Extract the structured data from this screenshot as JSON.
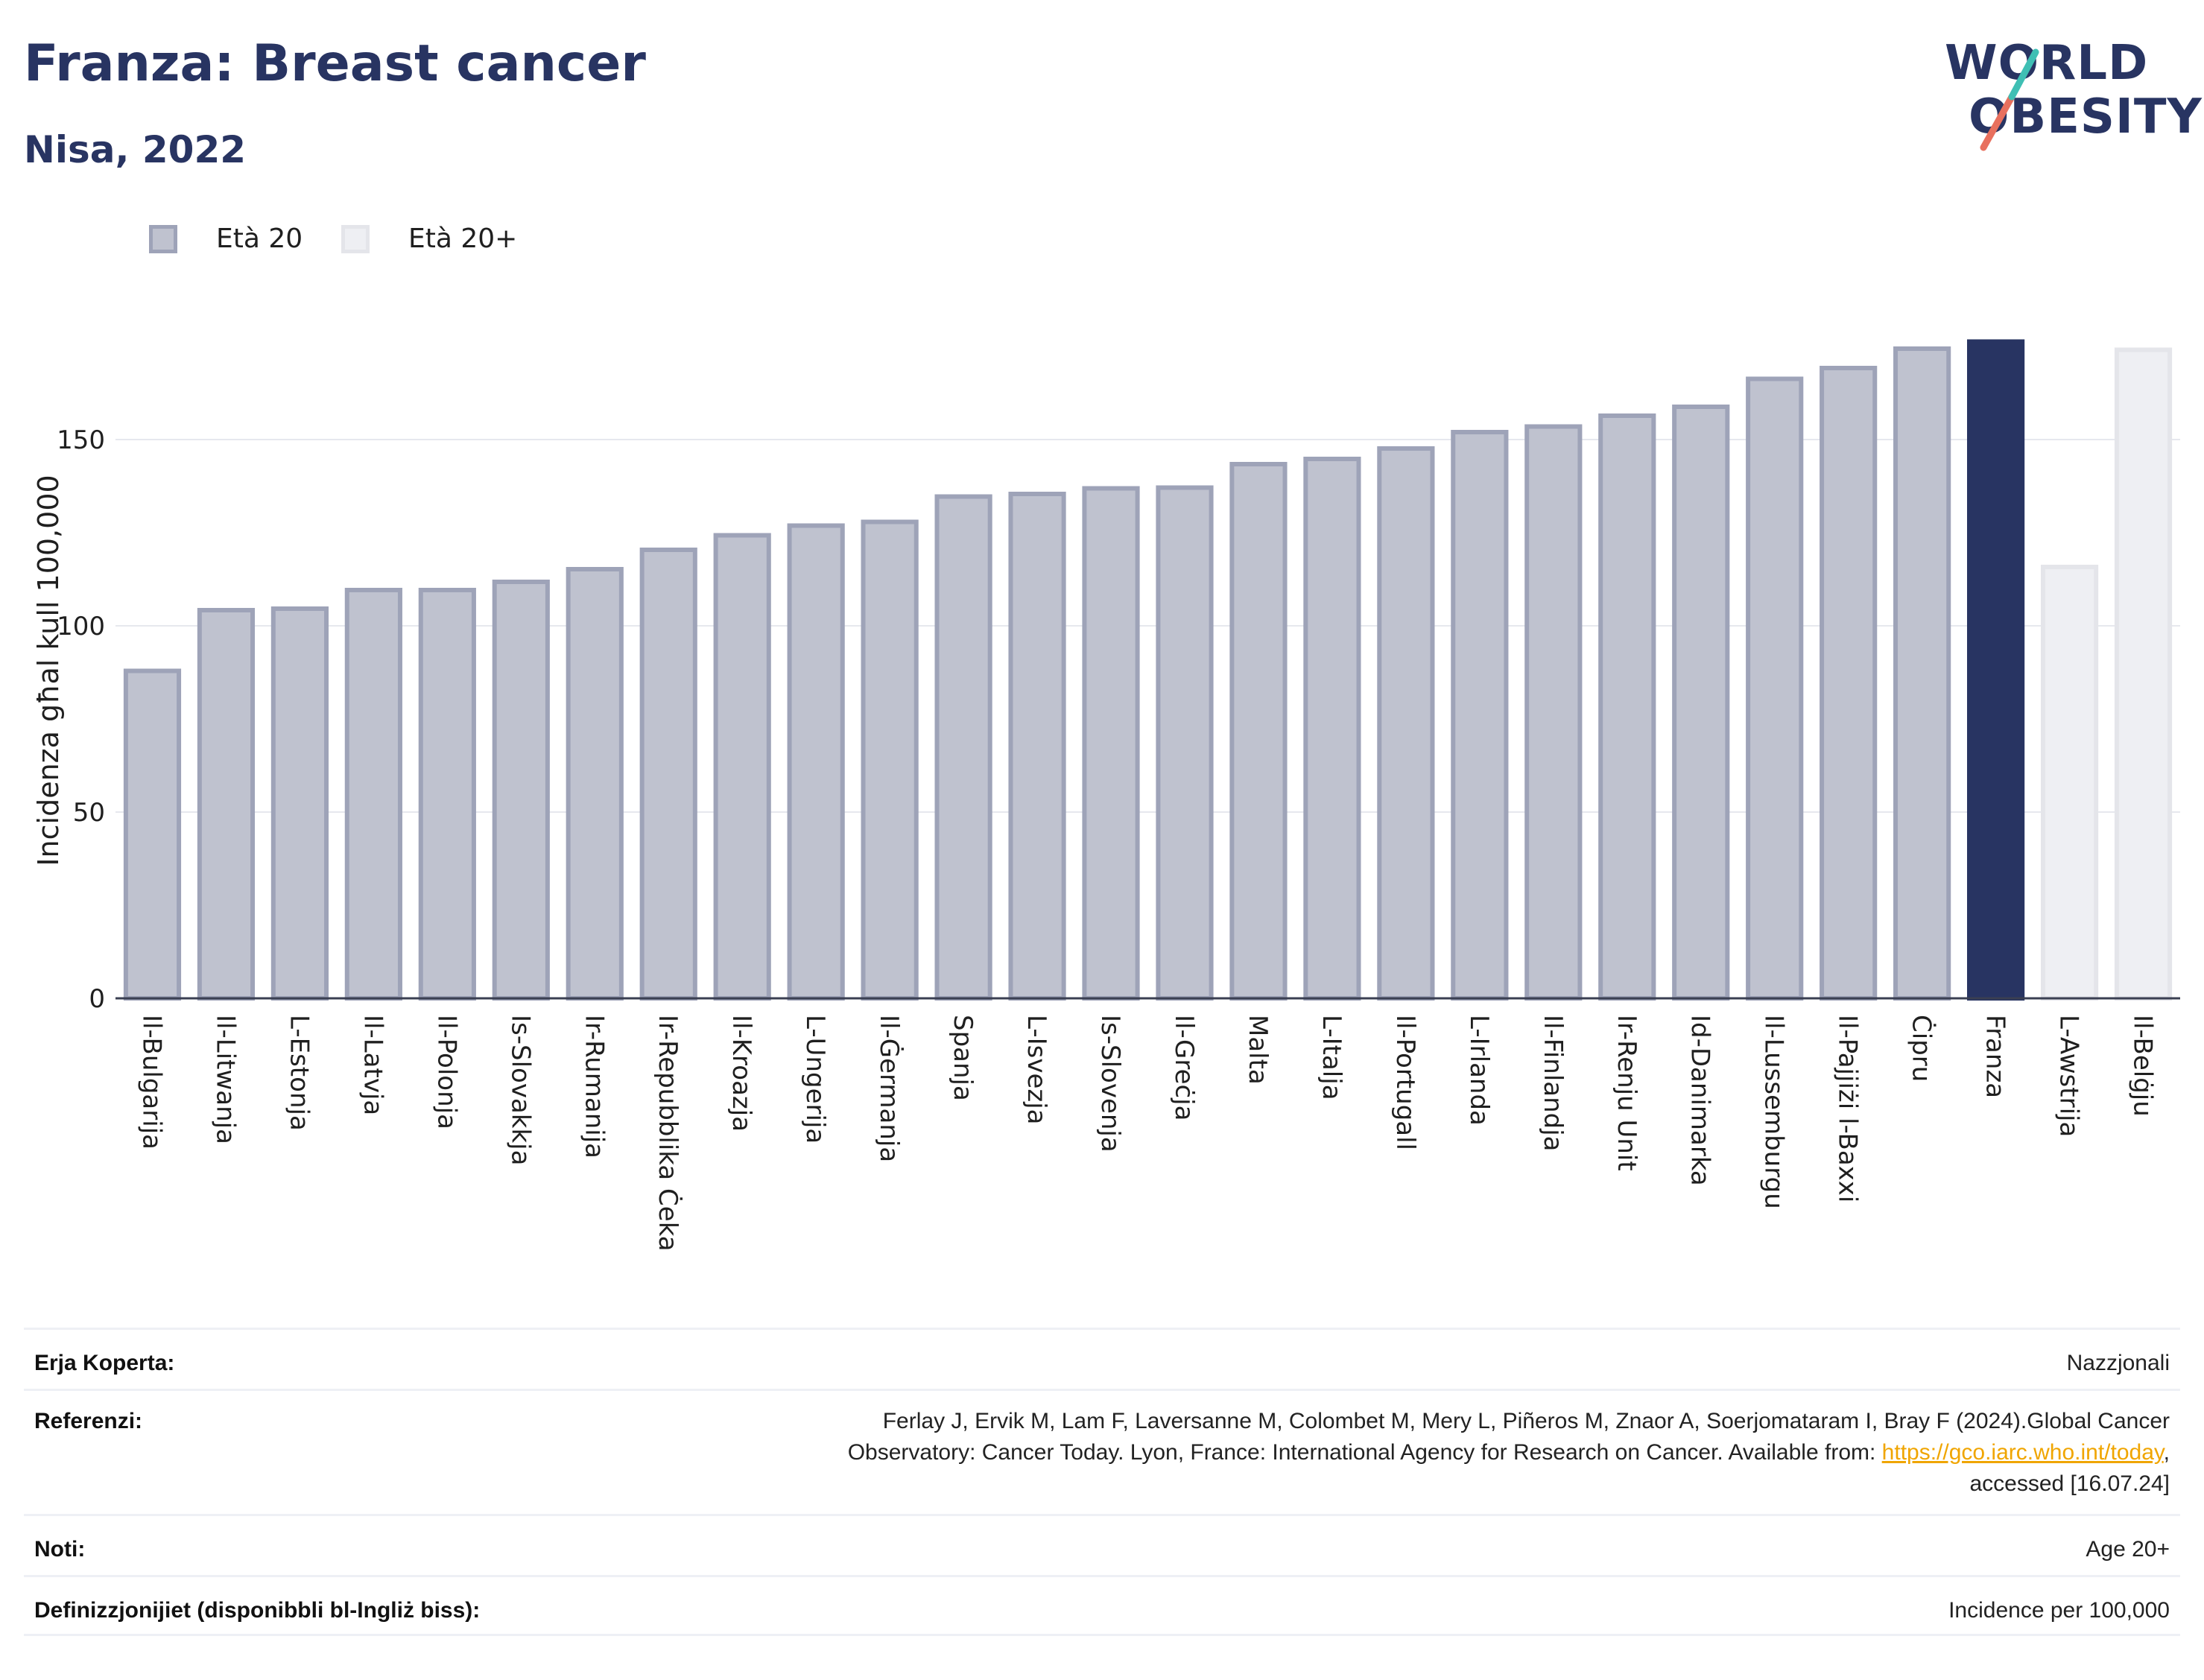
{
  "header": {
    "title": "Franza: Breast cancer",
    "subtitle": "Nisa, 2022"
  },
  "logo": {
    "line1": "WORLD",
    "line2": "OBESITY"
  },
  "legend": [
    {
      "label": "Età 20",
      "fill": "#bfc2cf",
      "stroke": "#9ea3b8"
    },
    {
      "label": "Età 20+",
      "fill": "#eeeff3",
      "stroke": "#e4e5ea"
    }
  ],
  "chart_data": {
    "type": "bar",
    "ylabel": "Incidenza għal kull 100,000",
    "ylim": [
      0,
      180
    ],
    "yticks": [
      0,
      50,
      100,
      150
    ],
    "grid": true,
    "legend_position": "top-left",
    "categories": [
      "Il-Bulgarija",
      "Il-Litwanja",
      "L-Estonja",
      "Il-Latvja",
      "Il-Polonja",
      "Is-Slovakkja",
      "Ir-Rumanija",
      "Ir-Repubblika Ċeka",
      "Il-Kroazja",
      "L-Ungerija",
      "Il-Ġermanja",
      "Spanja",
      "L-Isvezja",
      "Is-Slovenja",
      "Il-Greċja",
      "Malta",
      "L-Italja",
      "Il-Portugall",
      "L-Irlanda",
      "Il-Finlandja",
      "Ir-Renju Unit",
      "Id-Danimarka",
      "Il-Lussemburgu",
      "Il-Pajjiżi l-Baxxi",
      "Ċipru",
      "Franza",
      "L-Awstrija",
      "Il-Belġju"
    ],
    "values": [
      88.5,
      104.8,
      105.2,
      110.2,
      110.2,
      112.4,
      115.8,
      121.0,
      124.9,
      127.5,
      128.5,
      135.3,
      136.0,
      137.5,
      137.7,
      144.0,
      145.4,
      148.2,
      152.6,
      154.1,
      157.0,
      159.4,
      166.9,
      169.8,
      175.0,
      176.9,
      116.4,
      174.7
    ],
    "series_group": [
      "Età 20",
      "Età 20",
      "Età 20",
      "Età 20",
      "Età 20",
      "Età 20",
      "Età 20",
      "Età 20",
      "Età 20",
      "Età 20",
      "Età 20",
      "Età 20",
      "Età 20",
      "Età 20",
      "Età 20",
      "Età 20",
      "Età 20",
      "Età 20",
      "Età 20",
      "Età 20",
      "Età 20",
      "Età 20",
      "Età 20",
      "Età 20",
      "Età 20",
      "highlight",
      "Età 20+",
      "Età 20+"
    ],
    "colors": {
      "Età 20": {
        "fill": "#bfc2cf",
        "stroke": "#9ea3b8"
      },
      "Età 20+": {
        "fill": "#eeeff3",
        "stroke": "#e4e5ea"
      },
      "highlight": {
        "fill": "#283462",
        "stroke": "#283462"
      }
    }
  },
  "footer": {
    "rows": [
      {
        "label": "Erja Koperta:",
        "value": "Nazzjonali"
      },
      {
        "label": "Referenzi:",
        "value_lines": [
          "Ferlay J, Ervik M, Lam F, Laversanne M, Colombet M, Mery L, Piñeros M, Znaor A, Soerjomataram I, Bray F (2024).Global Cancer",
          "Observatory: Cancer Today. Lyon, France: International Agency for Research on Cancer. Available from: "
        ],
        "link_text": "https://gco.iarc.who.int/today",
        "after_link": ",",
        "value_last": "accessed [16.07.24]"
      },
      {
        "label": "Noti:",
        "value": "Age 20+"
      },
      {
        "label": "Definizzjonijiet (disponibbli bl-Ingliż biss):",
        "value": "Incidence per 100,000"
      }
    ]
  }
}
